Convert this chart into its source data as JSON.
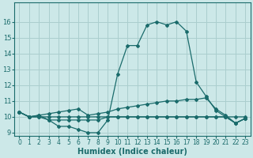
{
  "xlabel": "Humidex (Indice chaleur)",
  "x": [
    0,
    1,
    2,
    3,
    4,
    5,
    6,
    7,
    8,
    9,
    10,
    11,
    12,
    13,
    14,
    15,
    16,
    17,
    18,
    19,
    20,
    21,
    22,
    23
  ],
  "line1": [
    10.3,
    10.0,
    10.0,
    10.0,
    10.0,
    10.0,
    10.0,
    10.0,
    10.0,
    10.0,
    10.0,
    10.0,
    10.0,
    10.0,
    10.0,
    10.0,
    10.0,
    10.0,
    10.0,
    10.0,
    10.0,
    10.0,
    10.0,
    10.0
  ],
  "line2": [
    10.3,
    10.0,
    10.0,
    9.8,
    9.8,
    9.8,
    9.8,
    9.8,
    9.8,
    10.0,
    10.0,
    10.0,
    10.0,
    10.0,
    10.0,
    10.0,
    10.0,
    10.0,
    10.0,
    10.0,
    10.0,
    10.0,
    9.6,
    9.9
  ],
  "line3": [
    10.3,
    10.0,
    10.1,
    10.2,
    10.3,
    10.4,
    10.5,
    10.1,
    10.2,
    10.3,
    10.5,
    10.6,
    10.7,
    10.8,
    10.9,
    11.0,
    11.0,
    11.1,
    11.1,
    11.2,
    10.5,
    10.1,
    9.6,
    9.9
  ],
  "line4": [
    10.3,
    10.0,
    10.1,
    9.8,
    9.4,
    9.4,
    9.2,
    9.0,
    9.0,
    9.8,
    12.7,
    14.5,
    14.5,
    15.8,
    16.0,
    15.8,
    16.0,
    15.4,
    12.2,
    11.3,
    10.4,
    10.0,
    9.6,
    9.9
  ],
  "color": "#1a6b6b",
  "bg_color": "#cce8e8",
  "grid_color": "#aacece",
  "ylim": [
    8.8,
    17.2
  ],
  "xlim": [
    -0.5,
    23.5
  ],
  "yticks": [
    9,
    10,
    11,
    12,
    13,
    14,
    15,
    16
  ],
  "xticks": [
    0,
    1,
    2,
    3,
    4,
    5,
    6,
    7,
    8,
    9,
    10,
    11,
    12,
    13,
    14,
    15,
    16,
    17,
    18,
    19,
    20,
    21,
    22,
    23
  ]
}
